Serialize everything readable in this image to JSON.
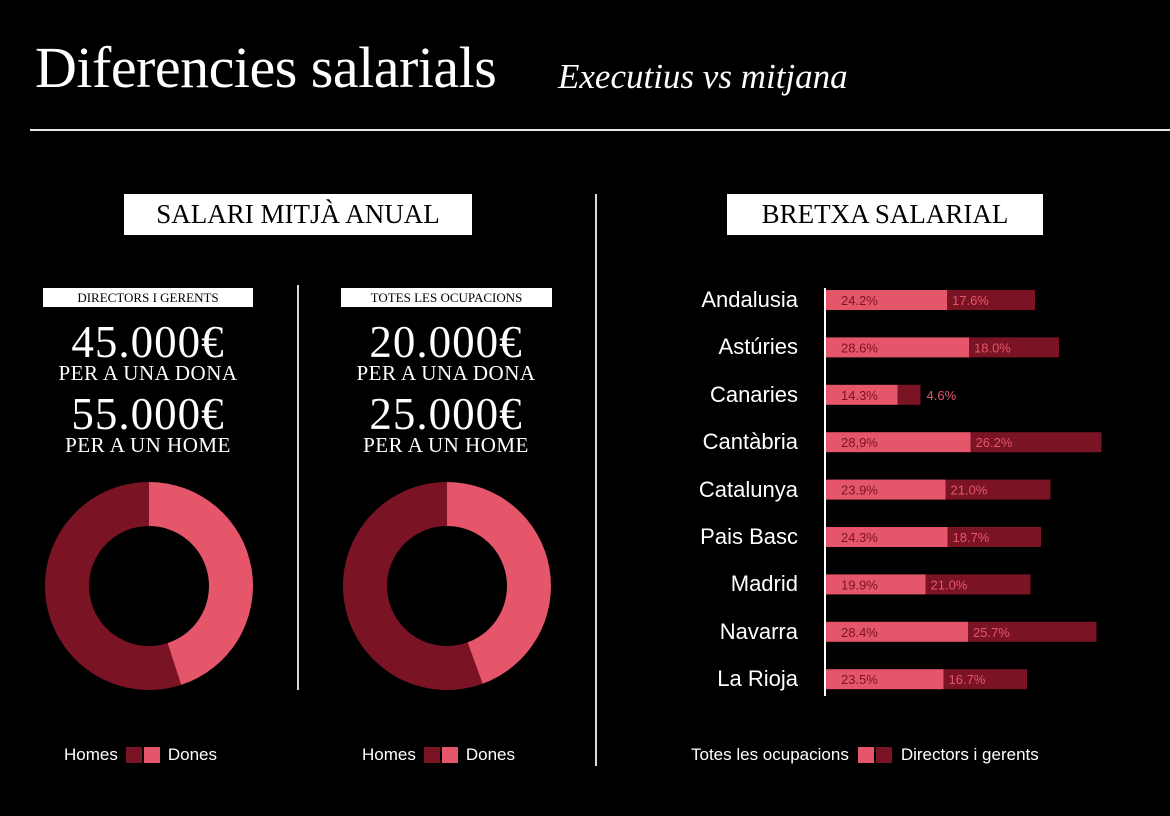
{
  "header": {
    "title": "Diferencies salarials",
    "subtitle": "Executius vs mitjana"
  },
  "salary_section": {
    "heading": "SALARI MITJÀ ANUAL",
    "groups": [
      {
        "label": "DIRECTORS I GERENTS",
        "woman_value": "45.000€",
        "woman_label": "PER A UNA DONA",
        "man_value": "55.000€",
        "man_label": "PER A UN HOME",
        "legend": {
          "homes": "Homes",
          "dones": "Dones"
        }
      },
      {
        "label": "TOTES LES OCUPACIONS",
        "woman_value": "20.000€",
        "woman_label": "PER A UNA DONA",
        "man_value": "25.000€",
        "man_label": "PER A UN HOME",
        "legend": {
          "homes": "Homes",
          "dones": "Dones"
        }
      }
    ]
  },
  "gap_section": {
    "heading": "BRETXA SALARIAL",
    "legend": {
      "all": "Totes les ocupacions",
      "exec": "Directors i gerents"
    }
  },
  "colors": {
    "light": "#e5566a",
    "dark": "#7a1424",
    "background": "#000000"
  },
  "chart_data": [
    {
      "type": "pie",
      "variant": "donut",
      "categories": [
        "Homes",
        "Dones"
      ],
      "values": [
        55000,
        45000
      ]
    },
    {
      "type": "pie",
      "variant": "donut",
      "categories": [
        "Homes",
        "Dones"
      ],
      "values": [
        25000,
        20000
      ]
    },
    {
      "type": "bar",
      "orientation": "horizontal",
      "stacked": true,
      "categories": [
        "Andalusia",
        "Astúries",
        "Canaries",
        "Cantàbria",
        "Catalunya",
        "Pais Basc",
        "Madrid",
        "Navarra",
        "La Rioja"
      ],
      "series": [
        {
          "name": "Totes les ocupacions",
          "values": [
            24.2,
            28.6,
            14.3,
            28.9,
            23.9,
            24.3,
            19.9,
            28.4,
            23.5
          ],
          "labels": [
            "24.2%",
            "28.6%",
            "14.3%",
            "28,9%",
            "23.9%",
            "24.3%",
            "19.9%",
            "28.4%",
            "23.5%"
          ]
        },
        {
          "name": "Directors i gerents",
          "values": [
            17.6,
            18.0,
            4.6,
            26.2,
            21.0,
            18.7,
            21.0,
            25.7,
            16.7
          ],
          "labels": [
            "17.6%",
            "18.0%",
            "4.6%",
            "26.2%",
            "21.0%",
            "18.7%",
            "21.0%",
            "25.7%",
            "16.7%"
          ]
        }
      ]
    }
  ]
}
